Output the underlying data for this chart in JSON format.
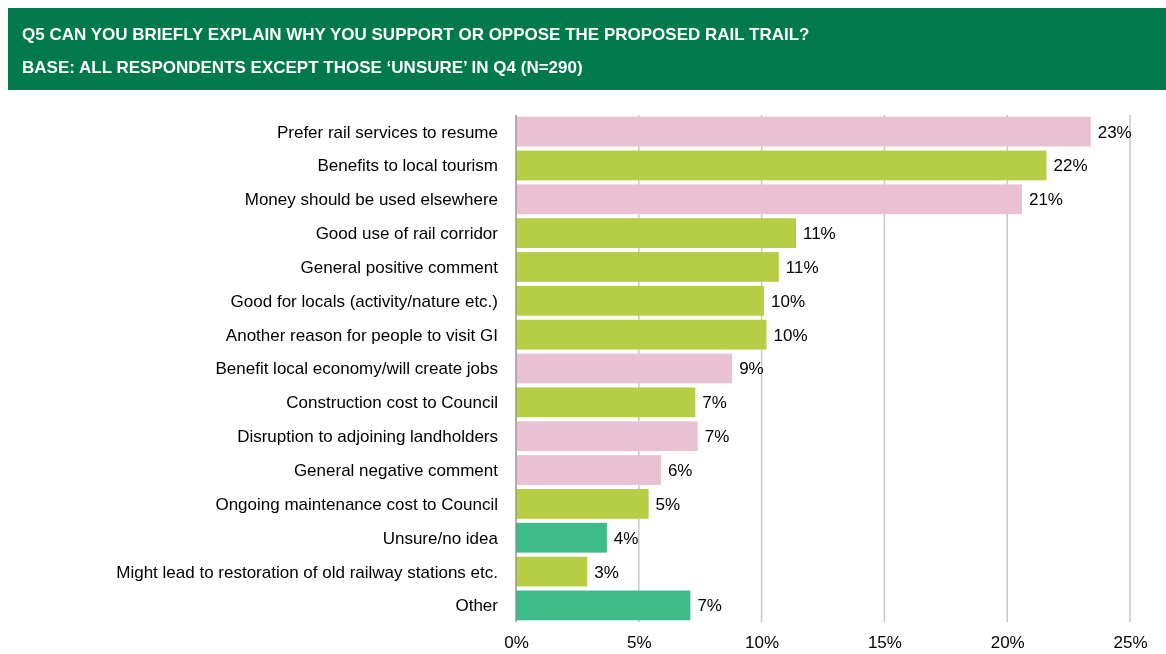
{
  "chart_data": {
    "type": "bar",
    "orientation": "horizontal",
    "title": "Q5 CAN YOU BRIEFLY EXPLAIN WHY YOU SUPPORT OR OPPOSE THE PROPOSED RAIL TRAIL?",
    "subtitle": "BASE: ALL RESPONDENTS EXCEPT THOSE ‘UNSURE’ IN Q4 (N=290)",
    "categories": [
      "Prefer rail services to resume",
      "Benefits to local tourism",
      "Money should be used elsewhere",
      "Good use of rail corridor",
      "General positive comment",
      "Good for locals (activity/nature etc.)",
      "Another reason for people to visit GI",
      "Benefit local economy/will create jobs",
      "Construction cost to Council",
      "Disruption to adjoining landholders",
      "General negative comment",
      "Ongoing maintenance cost to Council",
      "Unsure/no idea",
      "Might lead to restoration of old railway stations etc.",
      "Other"
    ],
    "values": [
      23.4,
      21.6,
      20.6,
      11.4,
      10.7,
      10.1,
      10.2,
      8.8,
      7.3,
      7.4,
      5.9,
      5.4,
      3.7,
      2.9,
      7.1
    ],
    "value_labels": [
      "23%",
      "22%",
      "21%",
      "11%",
      "11%",
      "10%",
      "10%",
      "9%",
      "7%",
      "7%",
      "6%",
      "5%",
      "4%",
      "3%",
      "7%"
    ],
    "colors": [
      "#e9c1d3",
      "#b6cd46",
      "#e9c1d3",
      "#b6cd46",
      "#b6cd46",
      "#b6cd46",
      "#b6cd46",
      "#e9c1d3",
      "#b6cd46",
      "#e9c1d3",
      "#e9c1d3",
      "#b6cd46",
      "#3dbb8b",
      "#b6cd46",
      "#3dbb8b"
    ],
    "xlim": [
      0,
      25
    ],
    "xticks": [
      {
        "value": 0,
        "label": "0%"
      },
      {
        "value": 5,
        "label": "5%"
      },
      {
        "value": 10,
        "label": "10%"
      },
      {
        "value": 15,
        "label": "15%"
      },
      {
        "value": 20,
        "label": "20%"
      },
      {
        "value": 25,
        "label": "25%"
      }
    ],
    "grid": "x"
  }
}
